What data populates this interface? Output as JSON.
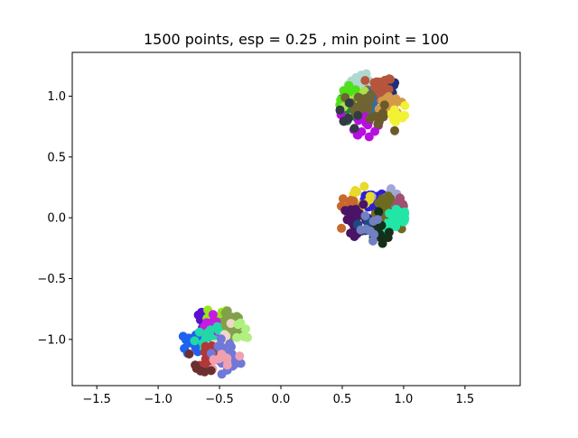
{
  "chart_data": {
    "type": "scatter",
    "title": "1500 points, esp = 0.25 , min point = 100",
    "xlabel": "",
    "ylabel": "",
    "xlim": [
      -1.7,
      1.95
    ],
    "ylim": [
      -1.38,
      1.36
    ],
    "xticks": [
      -1.5,
      -1.0,
      -0.5,
      0.0,
      0.5,
      1.0,
      1.5
    ],
    "xtick_labels": [
      "−1.5",
      "−1.0",
      "−0.5",
      "0.0",
      "0.5",
      "1.0",
      "1.5"
    ],
    "yticks": [
      -1.0,
      -0.5,
      0.0,
      0.5,
      1.0
    ],
    "ytick_labels": [
      "−1.0",
      "−0.5",
      "0.0",
      "0.5",
      "1.0"
    ],
    "grid": false,
    "legend": "none",
    "groups": [
      {
        "center": [
          0.75,
          0.92
        ],
        "spread": 0.11,
        "clusters": [
          {
            "color": "#1f2f7a",
            "center": [
              0.86,
              1.04
            ],
            "n": 22
          },
          {
            "color": "#b0d8d0",
            "center": [
              0.66,
              1.1
            ],
            "n": 18
          },
          {
            "color": "#b5563c",
            "center": [
              0.8,
              1.06
            ],
            "n": 24
          },
          {
            "color": "#2f6fa6",
            "center": [
              0.74,
              0.9
            ],
            "n": 22
          },
          {
            "color": "#1f8a2f",
            "center": [
              0.56,
              0.86
            ],
            "n": 14
          },
          {
            "color": "#4ee01a",
            "center": [
              0.55,
              1.01
            ],
            "n": 12
          },
          {
            "color": "#a9e24a",
            "center": [
              0.6,
              0.99
            ],
            "n": 10
          },
          {
            "color": "#6f6432",
            "center": [
              0.65,
              0.93
            ],
            "n": 24
          },
          {
            "color": "#d49a4a",
            "center": [
              0.92,
              0.94
            ],
            "n": 18
          },
          {
            "color": "#f2f234",
            "center": [
              0.93,
              0.84
            ],
            "n": 10
          },
          {
            "color": "#b70fe0",
            "center": [
              0.67,
              0.78
            ],
            "n": 16
          },
          {
            "color": "#6b5a2a",
            "center": [
              0.8,
              0.8
            ],
            "n": 10
          },
          {
            "color": "#333a46",
            "center": [
              0.56,
              0.82
            ],
            "n": 8
          }
        ]
      },
      {
        "center": [
          0.74,
          0.02
        ],
        "spread": 0.11,
        "clusters": [
          {
            "color": "#2f1fd6",
            "center": [
              0.73,
              0.14
            ],
            "n": 22
          },
          {
            "color": "#a0a8d8",
            "center": [
              0.9,
              0.16
            ],
            "n": 16
          },
          {
            "color": "#e8d92a",
            "center": [
              0.63,
              0.13
            ],
            "n": 16
          },
          {
            "color": "#c7682c",
            "center": [
              0.55,
              0.1
            ],
            "n": 10
          },
          {
            "color": "#4a1466",
            "center": [
              0.62,
              -0.01
            ],
            "n": 24
          },
          {
            "color": "#6e6a20",
            "center": [
              0.86,
              0.05
            ],
            "n": 22
          },
          {
            "color": "#a05070",
            "center": [
              0.98,
              0.07
            ],
            "n": 10
          },
          {
            "color": "#22e6a6",
            "center": [
              0.96,
              -0.01
            ],
            "n": 22
          },
          {
            "color": "#1e4a82",
            "center": [
              0.74,
              -0.05
            ],
            "n": 14
          },
          {
            "color": "#14301a",
            "center": [
              0.82,
              -0.13
            ],
            "n": 14
          },
          {
            "color": "#7080c0",
            "center": [
              0.7,
              -0.1
            ],
            "n": 8
          }
        ]
      },
      {
        "center": [
          -0.53,
          -1.02
        ],
        "spread": 0.1,
        "clusters": [
          {
            "color": "#5a10d0",
            "center": [
              -0.62,
              -0.88
            ],
            "n": 16
          },
          {
            "color": "#96e81a",
            "center": [
              -0.52,
              -0.84
            ],
            "n": 12
          },
          {
            "color": "#82a04a",
            "center": [
              -0.41,
              -0.88
            ],
            "n": 22
          },
          {
            "color": "#c81ae0",
            "center": [
              -0.57,
              -0.93
            ],
            "n": 14
          },
          {
            "color": "#1f62f0",
            "center": [
              -0.7,
              -1.02
            ],
            "n": 18
          },
          {
            "color": "#22d8a8",
            "center": [
              -0.58,
              -1.0
            ],
            "n": 18
          },
          {
            "color": "#f0d8c8",
            "center": [
              -0.44,
              -1.0
            ],
            "n": 12
          },
          {
            "color": "#b03838",
            "center": [
              -0.58,
              -1.14
            ],
            "n": 20
          },
          {
            "color": "#7078d8",
            "center": [
              -0.44,
              -1.12
            ],
            "n": 20
          },
          {
            "color": "#f0a0b0",
            "center": [
              -0.51,
              -1.18
            ],
            "n": 10
          },
          {
            "color": "#b0f080",
            "center": [
              -0.32,
              -0.96
            ],
            "n": 6
          },
          {
            "color": "#6a3030",
            "center": [
              -0.66,
              -1.2
            ],
            "n": 6
          }
        ]
      }
    ]
  }
}
